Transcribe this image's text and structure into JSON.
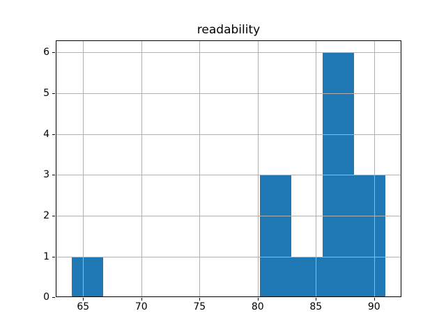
{
  "chart_data": {
    "type": "bar",
    "subtype": "histogram",
    "title": "readability",
    "xlabel": "",
    "ylabel": "",
    "bin_edges": [
      64.0,
      66.7,
      69.4,
      72.1,
      74.8,
      77.5,
      80.2,
      82.9,
      85.6,
      88.3,
      91.0
    ],
    "counts": [
      1,
      0,
      0,
      0,
      0,
      0,
      3,
      1,
      6,
      3
    ],
    "xlim": [
      62.65,
      92.35
    ],
    "ylim": [
      0,
      6.3
    ],
    "x_ticks": [
      65,
      70,
      75,
      80,
      85,
      90
    ],
    "y_ticks": [
      0,
      1,
      2,
      3,
      4,
      5,
      6
    ],
    "grid": true,
    "grid_above_bars": true,
    "legend": null,
    "colors": {
      "bar": "#1f77b4",
      "grid": "#b0b0b0",
      "spine": "#000000",
      "background": "#ffffff",
      "text": "#000000"
    }
  }
}
